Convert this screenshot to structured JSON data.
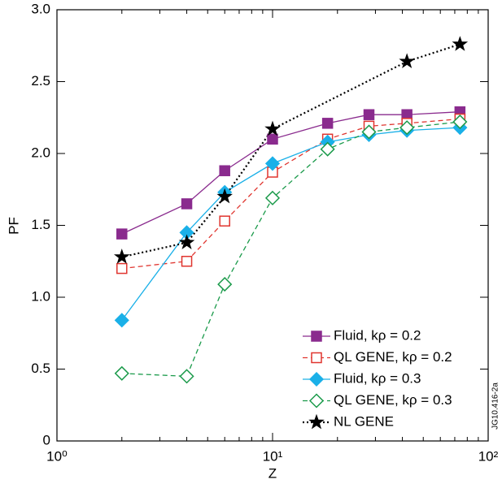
{
  "chart_data": {
    "type": "line",
    "xlabel": "Z",
    "ylabel": "PF",
    "xscale": "log",
    "xlim": [
      1,
      100
    ],
    "xticks": [
      {
        "value": 1,
        "label": "10⁰"
      },
      {
        "value": 10,
        "label": "10¹"
      },
      {
        "value": 100,
        "label": "10²"
      }
    ],
    "xminorticks": [
      2,
      3,
      4,
      5,
      6,
      7,
      8,
      9,
      20,
      30,
      40,
      50,
      60,
      70,
      80,
      90
    ],
    "ylim": [
      0,
      3.0
    ],
    "yticks": [
      0,
      0.5,
      {
        "value": 1.0,
        "label": "1.0"
      },
      1.5,
      {
        "value": 2.0,
        "label": "2.0"
      },
      2.5,
      {
        "value": 3.0,
        "label": "3.0"
      }
    ],
    "legend": "lower right",
    "figure_id": "JG10.416-2a",
    "series": [
      {
        "name": "Fluid, kρ = 0.2",
        "color": "#8a2b8e",
        "marker": "square",
        "filled": true,
        "dash": "solid",
        "x": [
          2,
          4,
          6,
          10,
          18,
          28,
          42,
          74
        ],
        "values": [
          1.44,
          1.65,
          1.88,
          2.1,
          2.21,
          2.27,
          2.27,
          2.29
        ]
      },
      {
        "name": "QL GENE, kρ = 0.2",
        "color": "#e0352f",
        "marker": "square",
        "filled": false,
        "dash": "dashed",
        "x": [
          2,
          4,
          6,
          10,
          18,
          28,
          42,
          74
        ],
        "values": [
          1.2,
          1.25,
          1.53,
          1.87,
          2.1,
          2.19,
          2.21,
          2.24
        ]
      },
      {
        "name": "Fluid, kρ = 0.3",
        "color": "#1ab0e8",
        "marker": "diamond",
        "filled": true,
        "dash": "solid",
        "x": [
          2,
          4,
          6,
          10,
          18,
          28,
          42,
          74
        ],
        "values": [
          0.84,
          1.45,
          1.73,
          1.93,
          2.08,
          2.13,
          2.16,
          2.18
        ]
      },
      {
        "name": "QL GENE, kρ = 0.3",
        "color": "#1a9a4a",
        "marker": "diamond",
        "filled": false,
        "dash": "dashed",
        "x": [
          2,
          4,
          6,
          10,
          18,
          28,
          42,
          74
        ],
        "values": [
          0.47,
          0.45,
          1.09,
          1.69,
          2.03,
          2.15,
          2.18,
          2.22
        ]
      },
      {
        "name": "NL GENE",
        "color": "#000000",
        "marker": "star",
        "filled": true,
        "dash": "dotted",
        "x": [
          2,
          4,
          6,
          10,
          42,
          74
        ],
        "values": [
          1.28,
          1.38,
          1.7,
          2.17,
          2.64,
          2.76
        ]
      }
    ]
  }
}
